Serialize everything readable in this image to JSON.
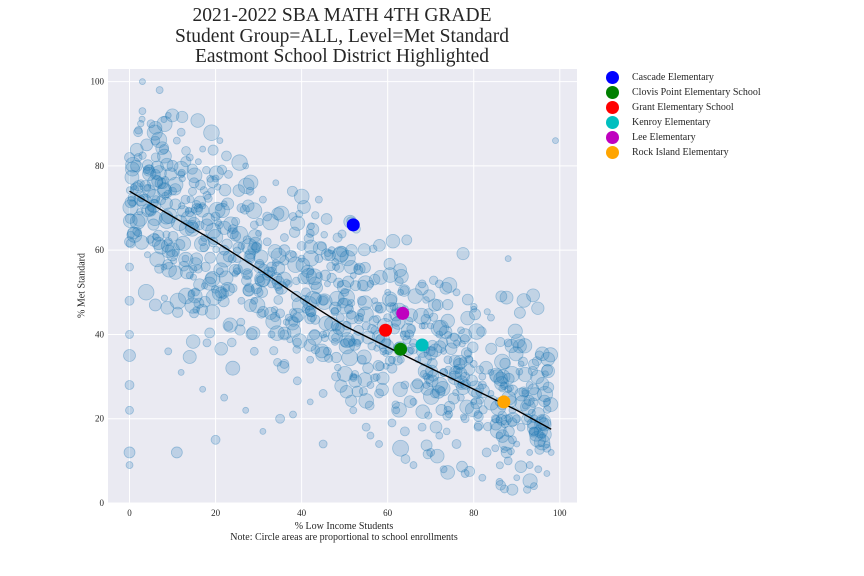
{
  "chart_data": {
    "type": "scatter",
    "title_lines": [
      "2021-2022 SBA MATH 4TH GRADE",
      "Student Group=ALL, Level=Met Standard",
      "Eastmont School District Highlighted"
    ],
    "xlabel": "% Low Income Students",
    "xnote": "Note: Circle areas are proportional to school enrollments",
    "ylabel": "% Met Standard",
    "xlim": [
      -5,
      104
    ],
    "ylim": [
      0,
      103
    ],
    "xticks": [
      0,
      20,
      40,
      60,
      80,
      100
    ],
    "yticks": [
      0,
      20,
      40,
      60,
      80,
      100
    ],
    "grid": true,
    "legend_position": "outside-right",
    "background_series": {
      "color": "#1f77b4",
      "description_points": "about 1100 schools, translucent circles"
    },
    "highlighted": [
      {
        "name": "Cascade Elementary",
        "x": 52,
        "y": 66,
        "color": "#0000ff"
      },
      {
        "name": "Clovis Point Elementary School",
        "x": 63,
        "y": 36.5,
        "color": "#008000"
      },
      {
        "name": "Grant Elementary School",
        "x": 59.5,
        "y": 41,
        "color": "#ff0000"
      },
      {
        "name": "Kenroy Elementary",
        "x": 68,
        "y": 37.5,
        "color": "#00bfbf"
      },
      {
        "name": "Lee Elementary",
        "x": 63.5,
        "y": 45,
        "color": "#bf00bf"
      },
      {
        "name": "Rock Island Elementary",
        "x": 87,
        "y": 24,
        "color": "#ffa500"
      }
    ],
    "fit_line": {
      "color": "#000000",
      "points": [
        [
          0,
          74
        ],
        [
          10,
          68
        ],
        [
          20,
          62
        ],
        [
          30,
          55.5
        ],
        [
          40,
          48.5
        ],
        [
          50,
          42
        ],
        [
          60,
          37
        ],
        [
          70,
          32
        ],
        [
          80,
          27
        ],
        [
          90,
          22
        ],
        [
          98,
          17.5
        ]
      ]
    },
    "sample_points": [
      [
        0,
        82,
        10
      ],
      [
        1,
        75,
        6
      ],
      [
        2,
        88,
        9
      ],
      [
        3,
        93,
        7
      ],
      [
        4,
        85,
        12
      ],
      [
        5,
        90,
        8
      ],
      [
        6,
        78,
        10
      ],
      [
        7,
        98,
        7
      ],
      [
        8,
        84,
        9
      ],
      [
        9,
        92,
        6
      ],
      [
        10,
        80,
        11
      ],
      [
        11,
        86,
        7
      ],
      [
        12,
        88,
        8
      ],
      [
        13,
        72,
        9
      ],
      [
        14,
        82,
        7
      ],
      [
        15,
        76,
        10
      ],
      [
        16,
        70,
        8
      ],
      [
        17,
        84,
        6
      ],
      [
        18,
        66,
        12
      ],
      [
        19,
        74,
        7
      ],
      [
        20,
        68,
        9
      ],
      [
        21,
        86,
        6
      ],
      [
        22,
        60,
        10
      ],
      [
        23,
        78,
        8
      ],
      [
        24,
        64,
        11
      ],
      [
        25,
        55,
        7
      ],
      [
        26,
        70,
        9
      ],
      [
        27,
        80,
        6
      ],
      [
        28,
        58,
        10
      ],
      [
        29,
        66,
        8
      ],
      [
        30,
        50,
        9
      ],
      [
        31,
        72,
        7
      ],
      [
        32,
        62,
        8
      ],
      [
        33,
        56,
        10
      ],
      [
        34,
        76,
        6
      ],
      [
        35,
        45,
        9
      ],
      [
        36,
        60,
        11
      ],
      [
        37,
        52,
        7
      ],
      [
        38,
        68,
        8
      ],
      [
        39,
        44,
        10
      ],
      [
        40,
        58,
        7
      ],
      [
        41,
        50,
        9
      ],
      [
        42,
        64,
        8
      ],
      [
        43,
        40,
        10
      ],
      [
        44,
        54,
        6
      ],
      [
        45,
        48,
        9
      ],
      [
        46,
        36,
        8
      ],
      [
        47,
        60,
        7
      ],
      [
        48,
        42,
        10
      ],
      [
        49,
        52,
        6
      ],
      [
        50,
        38,
        8
      ],
      [
        51,
        46,
        9
      ],
      [
        52,
        30,
        7
      ],
      [
        53,
        56,
        6
      ],
      [
        54,
        34,
        9
      ],
      [
        55,
        42,
        8
      ],
      [
        56,
        28,
        7
      ],
      [
        57,
        48,
        6
      ],
      [
        58,
        26,
        9
      ],
      [
        59,
        36,
        7
      ],
      [
        60,
        44,
        8
      ],
      [
        61,
        32,
        10
      ],
      [
        62,
        22,
        7
      ],
      [
        63,
        50,
        6
      ],
      [
        64,
        28,
        8
      ],
      [
        65,
        40,
        9
      ],
      [
        66,
        24,
        7
      ],
      [
        67,
        34,
        6
      ],
      [
        68,
        18,
        8
      ],
      [
        69,
        30,
        7
      ],
      [
        70,
        42,
        6
      ],
      [
        71,
        26,
        9
      ],
      [
        72,
        16,
        7
      ],
      [
        73,
        36,
        6
      ],
      [
        74,
        22,
        8
      ],
      [
        75,
        30,
        7
      ],
      [
        76,
        14,
        9
      ],
      [
        77,
        28,
        6
      ],
      [
        78,
        20,
        8
      ],
      [
        79,
        34,
        7
      ],
      [
        80,
        24,
        6
      ],
      [
        81,
        18,
        8
      ],
      [
        82,
        30,
        7
      ],
      [
        83,
        12,
        9
      ],
      [
        84,
        26,
        6
      ],
      [
        85,
        20,
        8
      ],
      [
        86,
        16,
        7
      ],
      [
        87,
        28,
        6
      ],
      [
        88,
        10,
        8
      ],
      [
        89,
        22,
        7
      ],
      [
        90,
        14,
        6
      ],
      [
        91,
        18,
        8
      ],
      [
        92,
        26,
        7
      ],
      [
        93,
        12,
        6
      ],
      [
        94,
        20,
        8
      ],
      [
        95,
        8,
        7
      ],
      [
        96,
        16,
        6
      ],
      [
        97,
        24,
        7
      ],
      [
        98,
        12,
        6
      ],
      [
        99,
        86,
        6
      ],
      [
        0,
        62,
        10
      ],
      [
        0,
        40,
        8
      ],
      [
        0,
        35,
        12
      ],
      [
        0,
        28,
        9
      ],
      [
        0,
        22,
        8
      ],
      [
        0,
        12,
        11
      ],
      [
        0,
        48,
        9
      ],
      [
        0,
        56,
        8
      ],
      [
        0,
        9,
        7
      ],
      [
        6,
        47,
        12
      ],
      [
        11,
        12,
        11
      ],
      [
        24,
        32,
        14
      ],
      [
        63,
        13,
        16
      ],
      [
        20,
        15,
        9
      ],
      [
        35,
        20,
        9
      ],
      [
        45,
        14,
        8
      ],
      [
        56,
        16,
        7
      ],
      [
        44,
        72,
        7
      ],
      [
        68,
        52,
        8
      ],
      [
        3,
        100,
        6
      ],
      [
        2,
        64,
        7
      ],
      [
        8,
        56,
        6
      ],
      [
        14,
        54,
        7
      ],
      [
        12,
        31,
        6
      ],
      [
        17,
        27,
        6
      ],
      [
        22,
        25,
        7
      ],
      [
        27,
        22,
        6
      ],
      [
        31,
        17,
        6
      ],
      [
        38,
        21,
        7
      ],
      [
        42,
        24,
        6
      ],
      [
        9,
        36,
        7
      ],
      [
        15,
        45,
        9
      ],
      [
        18,
        38,
        8
      ],
      [
        23,
        42,
        9
      ],
      [
        26,
        48,
        7
      ],
      [
        29,
        36,
        8
      ],
      [
        33,
        40,
        7
      ],
      [
        36,
        33,
        9
      ],
      [
        39,
        29,
        8
      ],
      [
        42,
        34,
        7
      ],
      [
        45,
        26,
        8
      ],
      [
        48,
        30,
        9
      ],
      [
        52,
        22,
        7
      ],
      [
        55,
        18,
        8
      ],
      [
        58,
        14,
        7
      ],
      [
        61,
        19,
        8
      ],
      [
        64,
        17,
        9
      ],
      [
        66,
        9,
        7
      ],
      [
        70,
        12,
        8
      ],
      [
        73,
        8,
        7
      ],
      [
        78,
        7,
        8
      ],
      [
        82,
        6,
        7
      ],
      [
        86,
        5,
        7
      ],
      [
        90,
        6,
        6
      ],
      [
        94,
        4,
        7
      ],
      [
        97,
        7,
        6
      ],
      [
        93,
        28,
        7
      ],
      [
        91,
        33,
        6
      ],
      [
        88,
        38,
        8
      ],
      [
        84,
        44,
        7
      ],
      [
        80,
        46,
        6
      ],
      [
        76,
        50,
        7
      ],
      [
        72,
        52,
        8
      ],
      [
        88,
        58,
        6
      ],
      [
        2,
        82,
        8
      ],
      [
        4,
        79,
        7
      ],
      [
        6,
        86,
        9
      ],
      [
        8,
        91,
        6
      ],
      [
        10,
        74,
        8
      ],
      [
        12,
        78,
        7
      ],
      [
        14,
        69,
        9
      ],
      [
        16,
        81,
        6
      ],
      [
        18,
        73,
        8
      ],
      [
        20,
        77,
        7
      ],
      [
        22,
        71,
        6
      ],
      [
        24,
        65,
        9
      ],
      [
        26,
        61,
        7
      ],
      [
        28,
        74,
        8
      ],
      [
        30,
        64,
        6
      ],
      [
        32,
        68,
        9
      ],
      [
        34,
        57,
        7
      ],
      [
        36,
        63,
        8
      ],
      [
        38,
        59,
        6
      ],
      [
        40,
        61,
        9
      ],
      [
        42,
        55,
        7
      ],
      [
        44,
        58,
        8
      ],
      [
        46,
        52,
        6
      ],
      [
        48,
        56,
        7
      ],
      [
        50,
        50,
        8
      ],
      [
        52,
        54,
        6
      ],
      [
        54,
        48,
        9
      ],
      [
        56,
        52,
        7
      ],
      [
        58,
        46,
        8
      ],
      [
        60,
        50,
        6
      ],
      [
        62,
        43,
        9
      ],
      [
        64,
        46,
        7
      ],
      [
        66,
        38,
        8
      ],
      [
        68,
        42,
        6
      ],
      [
        70,
        36,
        9
      ],
      [
        72,
        40,
        7
      ],
      [
        74,
        34,
        8
      ],
      [
        76,
        38,
        6
      ],
      [
        78,
        30,
        9
      ],
      [
        80,
        33,
        7
      ],
      [
        82,
        28,
        8
      ],
      [
        84,
        31,
        6
      ],
      [
        86,
        24,
        9
      ],
      [
        88,
        27,
        7
      ],
      [
        90,
        20,
        8
      ],
      [
        92,
        23,
        6
      ],
      [
        94,
        17,
        9
      ],
      [
        96,
        20,
        7
      ],
      [
        5,
        70,
        7
      ],
      [
        9,
        62,
        8
      ],
      [
        13,
        58,
        7
      ],
      [
        17,
        62,
        8
      ],
      [
        21,
        55,
        7
      ],
      [
        25,
        58,
        8
      ],
      [
        29,
        48,
        7
      ],
      [
        33,
        52,
        8
      ],
      [
        37,
        44,
        7
      ],
      [
        41,
        46,
        8
      ],
      [
        45,
        40,
        7
      ],
      [
        49,
        44,
        8
      ],
      [
        53,
        38,
        7
      ],
      [
        57,
        41,
        8
      ],
      [
        61,
        34,
        7
      ],
      [
        65,
        36,
        8
      ],
      [
        69,
        28,
        7
      ],
      [
        73,
        31,
        8
      ],
      [
        77,
        25,
        7
      ],
      [
        81,
        21,
        8
      ],
      [
        85,
        13,
        7
      ],
      [
        89,
        15,
        8
      ],
      [
        93,
        9,
        7
      ],
      [
        97,
        13,
        8
      ]
    ]
  }
}
